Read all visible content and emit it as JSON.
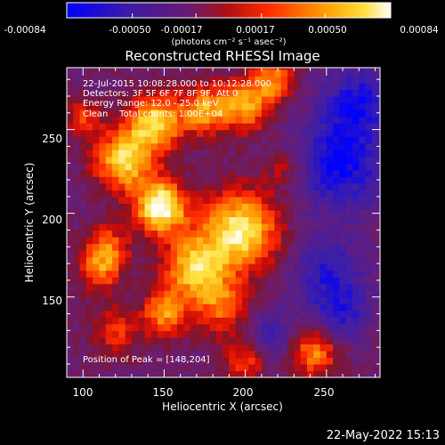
{
  "colorbar": {
    "tick_labels": [
      "-0.00084",
      "-0.00050",
      "-0.00017",
      "0.00017",
      "0.00050",
      "0.00084"
    ],
    "min": -0.00084,
    "max": 0.00084,
    "unit_label": "(photons cm⁻² s⁻¹ asec⁻²)"
  },
  "timestamp": "22-May-2022 15:13",
  "chart_data": {
    "type": "heatmap",
    "title": "Reconstructed RHESSI Image",
    "xlabel": "Heliocentric X (arcsec)",
    "ylabel": "Heliocentric Y (arcsec)",
    "xlim": [
      90,
      283
    ],
    "ylim": [
      102,
      287
    ],
    "x_ticks": [
      100,
      150,
      200,
      250
    ],
    "y_ticks": [
      150,
      200,
      250
    ],
    "colormap": "RHESSI (blue-purple-red-orange-yellow-white)",
    "annotations": [
      "22-Jul-2015 10:08:28.000 to 10:12:28.000",
      "Detectors: 3F 5F 6F 7F 8F 9F, Att 0",
      "Energy Range: 12.0 - 25.0 keV",
      "Clean    Total counts: 1.00E+04"
    ],
    "peak_label": "Position of Peak = [148,204]",
    "peak": [
      148,
      204
    ],
    "sources": [
      {
        "x": 148,
        "y": 204,
        "sigma": 11,
        "amplitude": 1.0
      },
      {
        "x": 125,
        "y": 232,
        "sigma": 13,
        "amplitude": 0.8
      },
      {
        "x": 145,
        "y": 255,
        "sigma": 12,
        "amplitude": 0.78
      },
      {
        "x": 175,
        "y": 262,
        "sigma": 10,
        "amplitude": 0.62
      },
      {
        "x": 200,
        "y": 265,
        "sigma": 11,
        "amplitude": 0.66
      },
      {
        "x": 218,
        "y": 280,
        "sigma": 9,
        "amplitude": 0.55
      },
      {
        "x": 197,
        "y": 190,
        "sigma": 17,
        "amplitude": 0.88
      },
      {
        "x": 168,
        "y": 168,
        "sigma": 13,
        "amplitude": 0.74
      },
      {
        "x": 115,
        "y": 180,
        "sigma": 10,
        "amplitude": 0.5
      },
      {
        "x": 110,
        "y": 165,
        "sigma": 9,
        "amplitude": 0.45
      },
      {
        "x": 150,
        "y": 140,
        "sigma": 10,
        "amplitude": 0.6
      },
      {
        "x": 185,
        "y": 145,
        "sigma": 12,
        "amplitude": 0.5
      },
      {
        "x": 120,
        "y": 130,
        "sigma": 10,
        "amplitude": 0.4
      },
      {
        "x": 200,
        "y": 112,
        "sigma": 9,
        "amplitude": 0.42
      },
      {
        "x": 243,
        "y": 117,
        "sigma": 10,
        "amplitude": 0.6
      },
      {
        "x": 225,
        "y": 228,
        "sigma": 9,
        "amplitude": 0.3
      },
      {
        "x": 100,
        "y": 258,
        "sigma": 8,
        "amplitude": 0.4
      }
    ],
    "negative_sources": [
      {
        "x": 258,
        "y": 230,
        "sigma": 20,
        "amplitude": 0.55
      },
      {
        "x": 270,
        "y": 268,
        "sigma": 15,
        "amplitude": 0.45
      },
      {
        "x": 250,
        "y": 165,
        "sigma": 16,
        "amplitude": 0.4
      },
      {
        "x": 215,
        "y": 128,
        "sigma": 10,
        "amplitude": 0.3
      },
      {
        "x": 260,
        "y": 140,
        "sigma": 12,
        "amplitude": 0.35
      }
    ]
  }
}
